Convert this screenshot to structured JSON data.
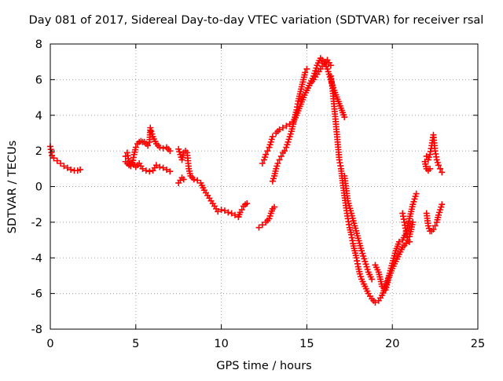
{
  "chart_data": {
    "type": "scatter",
    "title": "Day 081 of 2017, Sidereal Day-to-day VTEC variation (SDTVAR) for receiver rsal",
    "xlabel": "GPS time / hours",
    "ylabel": "SDTVAR / TECUs",
    "xlim": [
      0,
      25
    ],
    "ylim": [
      -8,
      8
    ],
    "xticks": [
      0,
      5,
      10,
      15,
      20,
      25
    ],
    "yticks": [
      -8,
      -6,
      -4,
      -2,
      0,
      2,
      4,
      6,
      8
    ],
    "grid": true,
    "marker": "+",
    "color": "#ff0000",
    "series": [
      {
        "name": "segment-1",
        "x": [
          0,
          0.1,
          0.2,
          0.4,
          0.6,
          0.8,
          1.0,
          1.2,
          1.4,
          1.6,
          1.75
        ],
        "y": [
          2.25,
          1.75,
          1.6,
          1.45,
          1.3,
          1.15,
          1.05,
          0.95,
          0.9,
          0.9,
          0.95
        ]
      },
      {
        "name": "segment-2",
        "x": [
          4.4,
          4.5,
          4.6,
          4.7,
          4.8,
          4.9,
          5.0,
          5.1,
          5.2,
          5.3,
          5.4,
          5.5,
          5.6,
          5.7,
          5.8,
          5.85
        ],
        "y": [
          1.7,
          1.9,
          1.4,
          1.15,
          1.3,
          1.8,
          2.2,
          2.4,
          2.5,
          2.55,
          2.5,
          2.5,
          2.4,
          2.3,
          2.5,
          3.3
        ]
      },
      {
        "name": "segment-3",
        "x": [
          4.4,
          4.6,
          4.8,
          5.0,
          5.2,
          5.4,
          5.6,
          5.8,
          6.0,
          6.2,
          6.4,
          6.6,
          6.8,
          7.0
        ],
        "y": [
          1.4,
          1.2,
          1.35,
          1.1,
          1.3,
          1.0,
          0.9,
          0.85,
          0.9,
          1.2,
          1.1,
          1.05,
          0.95,
          0.85
        ]
      },
      {
        "name": "segment-4",
        "x": [
          5.9,
          6.0,
          6.2,
          6.4,
          6.6,
          6.8,
          7.0
        ],
        "y": [
          3.1,
          2.8,
          2.4,
          2.2,
          2.15,
          2.2,
          2.0
        ]
      },
      {
        "name": "segment-5",
        "x": [
          7.5,
          7.6,
          7.7,
          7.8,
          7.9,
          8.0,
          8.1,
          8.2,
          8.4,
          8.6,
          8.8,
          9.0,
          9.2,
          9.4,
          9.6,
          9.8,
          10.0,
          10.2,
          10.4,
          10.6,
          10.8,
          11.0
        ],
        "y": [
          2.1,
          1.8,
          1.5,
          1.9,
          2.0,
          1.9,
          1.0,
          0.6,
          0.4,
          0.35,
          0.2,
          -0.2,
          -0.5,
          -0.8,
          -1.1,
          -1.4,
          -1.3,
          -1.35,
          -1.45,
          -1.5,
          -1.6,
          -1.7
        ]
      },
      {
        "name": "segment-6",
        "x": [
          7.5,
          7.6,
          7.7,
          7.8
        ],
        "y": [
          0.2,
          0.35,
          0.5,
          0.4
        ]
      },
      {
        "name": "segment-7",
        "x": [
          11.0,
          11.1,
          11.2,
          11.3,
          11.4,
          11.5
        ],
        "y": [
          -1.7,
          -1.45,
          -1.3,
          -1.1,
          -1.0,
          -0.95
        ]
      },
      {
        "name": "segment-8",
        "x": [
          12.2,
          12.4,
          12.6,
          12.8,
          12.9,
          13.0,
          13.1
        ],
        "y": [
          -2.3,
          -2.15,
          -2.0,
          -1.8,
          -1.5,
          -1.25,
          -1.15
        ]
      },
      {
        "name": "segment-9",
        "x": [
          12.4,
          12.5,
          12.6,
          12.7,
          12.8,
          12.9,
          13.0
        ],
        "y": [
          1.3,
          1.5,
          1.8,
          2.0,
          2.2,
          2.5,
          2.8
        ]
      },
      {
        "name": "segment-10",
        "x": [
          13.0,
          13.1,
          13.2,
          13.3,
          13.4,
          13.5,
          13.6,
          13.7,
          13.8,
          13.9,
          14.0,
          14.1,
          14.2,
          14.3,
          14.4,
          14.5,
          14.6,
          14.7,
          14.8,
          14.9,
          15.0
        ],
        "y": [
          0.3,
          0.6,
          1.0,
          1.3,
          1.5,
          1.7,
          1.9,
          2.0,
          2.2,
          2.5,
          2.8,
          3.1,
          3.5,
          3.9,
          4.3,
          4.8,
          5.2,
          5.6,
          6.0,
          6.4,
          6.6
        ]
      },
      {
        "name": "segment-11",
        "x": [
          13.2,
          13.4,
          13.6,
          13.8,
          14.0,
          14.2,
          14.4,
          14.6,
          14.8,
          15.0,
          15.2,
          15.4,
          15.6,
          15.8,
          16.0,
          16.2,
          16.4
        ],
        "y": [
          3.0,
          3.2,
          3.3,
          3.4,
          3.5,
          3.6,
          4.0,
          4.5,
          5.0,
          5.4,
          5.8,
          6.0,
          6.3,
          6.6,
          6.9,
          7.1,
          6.8
        ]
      },
      {
        "name": "segment-12",
        "x": [
          15.0,
          15.2,
          15.4,
          15.6,
          15.8,
          16.0,
          16.2,
          16.4,
          16.6,
          16.8,
          17.0,
          17.2
        ],
        "y": [
          5.4,
          5.8,
          6.2,
          6.8,
          7.2,
          7.0,
          6.6,
          6.0,
          5.4,
          4.9,
          4.4,
          3.9
        ]
      },
      {
        "name": "segment-13",
        "x": [
          16.4,
          16.5,
          16.6,
          16.7,
          16.8,
          16.9,
          17.0,
          17.1,
          17.2,
          17.3,
          17.4,
          17.5,
          17.6,
          17.7,
          17.8,
          17.9,
          18.0,
          18.1,
          18.2,
          18.4,
          18.6,
          18.8,
          19.0,
          19.2,
          19.4,
          19.6,
          19.8,
          20.0,
          20.2,
          20.4,
          20.6,
          20.8,
          21.0,
          21.2,
          21.4
        ],
        "y": [
          6.2,
          5.5,
          4.5,
          3.5,
          2.5,
          1.5,
          1.0,
          0.2,
          -0.5,
          -1.2,
          -1.8,
          -2.3,
          -2.7,
          -3.2,
          -3.6,
          -4.0,
          -4.5,
          -4.9,
          -5.2,
          -5.6,
          -6.0,
          -6.3,
          -6.5,
          -6.4,
          -6.1,
          -5.6,
          -5.0,
          -4.3,
          -3.6,
          -3.1,
          -3.0,
          -2.6,
          -1.8,
          -1.0,
          -0.4
        ]
      },
      {
        "name": "segment-14",
        "x": [
          17.2,
          17.4,
          17.6,
          17.8,
          18.0,
          18.2,
          18.4,
          18.6,
          18.8
        ],
        "y": [
          0.6,
          -0.8,
          -1.5,
          -2.2,
          -2.9,
          -3.6,
          -4.2,
          -4.8,
          -5.2
        ]
      },
      {
        "name": "segment-15",
        "x": [
          19.0,
          19.2,
          19.4,
          19.6,
          19.8,
          20.0,
          20.2,
          20.4,
          20.6,
          20.8,
          21.0
        ],
        "y": [
          -4.4,
          -4.8,
          -5.6,
          -5.8,
          -5.1,
          -4.6,
          -4.2,
          -3.8,
          -3.4,
          -3.2,
          -3.1
        ]
      },
      {
        "name": "segment-16",
        "x": [
          20.6,
          20.7,
          20.8,
          20.9,
          21.0,
          21.1,
          21.2
        ],
        "y": [
          -1.5,
          -2.0,
          -2.5,
          -3.0,
          -2.8,
          -2.4,
          -2.0
        ]
      },
      {
        "name": "segment-17",
        "x": [
          22.0,
          22.1,
          22.2,
          22.3,
          22.4,
          22.5,
          22.6,
          22.7,
          22.8,
          22.9
        ],
        "y": [
          -1.5,
          -2.2,
          -2.5,
          -2.5,
          -2.4,
          -2.2,
          -2.0,
          -1.6,
          -1.3,
          -1.0
        ]
      },
      {
        "name": "segment-18",
        "x": [
          22.0,
          22.1,
          22.2,
          22.3,
          22.4,
          22.5,
          22.6,
          22.7,
          22.8,
          22.9
        ],
        "y": [
          1.7,
          1.5,
          1.8,
          2.3,
          2.9,
          2.0,
          1.5,
          1.2,
          1.0,
          0.8
        ]
      },
      {
        "name": "segment-19",
        "x": [
          21.9,
          22.0,
          22.1,
          22.2
        ],
        "y": [
          1.4,
          1.0,
          0.9,
          1.0
        ]
      }
    ]
  }
}
